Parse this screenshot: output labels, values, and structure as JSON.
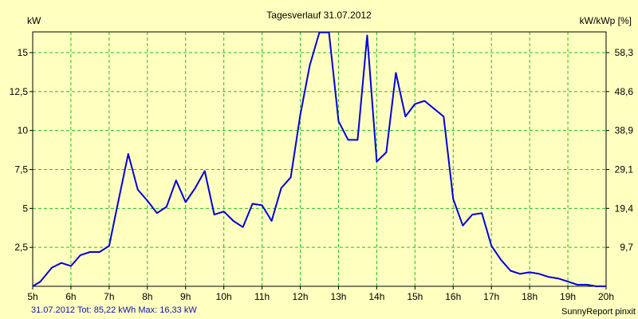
{
  "chart_data": {
    "type": "line",
    "title": "Tagesverlauf 31.07.2012",
    "ylabel_left": "kW",
    "ylabel_right": "kW/kWp [%]",
    "x_range": [
      5,
      20
    ],
    "ylim": [
      0,
      16.33
    ],
    "x_ticks": [
      {
        "value": 5,
        "label": "5h"
      },
      {
        "value": 6,
        "label": "6h"
      },
      {
        "value": 7,
        "label": "7h"
      },
      {
        "value": 8,
        "label": "8h"
      },
      {
        "value": 9,
        "label": "9h"
      },
      {
        "value": 10,
        "label": "10h"
      },
      {
        "value": 11,
        "label": "11h"
      },
      {
        "value": 12,
        "label": "12h"
      },
      {
        "value": 13,
        "label": "13h"
      },
      {
        "value": 14,
        "label": "14h"
      },
      {
        "value": 15,
        "label": "15h"
      },
      {
        "value": 16,
        "label": "16h"
      },
      {
        "value": 17,
        "label": "17h"
      },
      {
        "value": 18,
        "label": "18h"
      },
      {
        "value": 19,
        "label": "19h"
      },
      {
        "value": 20,
        "label": "20h"
      }
    ],
    "y_ticks_left": [
      {
        "value": 2.5,
        "label": "2,5"
      },
      {
        "value": 5,
        "label": "5"
      },
      {
        "value": 7.5,
        "label": "7,5"
      },
      {
        "value": 10,
        "label": "10"
      },
      {
        "value": 12.5,
        "label": "12,5"
      },
      {
        "value": 15,
        "label": "15"
      }
    ],
    "y_ticks_right": [
      {
        "value": 2.5,
        "label": "9,7"
      },
      {
        "value": 5,
        "label": "19,4"
      },
      {
        "value": 7.5,
        "label": "29,1"
      },
      {
        "value": 10,
        "label": "38,9"
      },
      {
        "value": 12.5,
        "label": "48,6"
      },
      {
        "value": 15,
        "label": "58,3"
      }
    ],
    "grid": true,
    "series": [
      {
        "color": "#0000e0",
        "x": [
          5.0,
          5.2,
          5.5,
          5.75,
          6.0,
          6.25,
          6.5,
          6.75,
          7.0,
          7.2,
          7.5,
          7.75,
          8.0,
          8.25,
          8.5,
          8.75,
          9.0,
          9.25,
          9.5,
          9.75,
          10.0,
          10.25,
          10.5,
          10.75,
          11.0,
          11.25,
          11.5,
          11.75,
          12.0,
          12.25,
          12.5,
          12.75,
          13.0,
          13.25,
          13.5,
          13.75,
          14.0,
          14.25,
          14.5,
          14.75,
          15.0,
          15.25,
          15.5,
          15.75,
          16.0,
          16.25,
          16.5,
          16.75,
          17.0,
          17.25,
          17.5,
          17.75,
          18.0,
          18.25,
          18.5,
          18.75,
          19.0,
          19.25,
          19.5,
          19.75,
          20.0
        ],
        "values": [
          0.0,
          0.3,
          1.2,
          1.5,
          1.3,
          2.0,
          2.2,
          2.2,
          2.6,
          5.0,
          8.5,
          6.2,
          5.5,
          4.7,
          5.1,
          6.8,
          5.4,
          6.3,
          7.4,
          4.6,
          4.8,
          4.2,
          3.8,
          5.3,
          5.2,
          4.2,
          6.3,
          7.0,
          11.0,
          14.2,
          16.3,
          16.3,
          10.6,
          9.4,
          9.4,
          16.1,
          8.0,
          8.6,
          13.7,
          10.9,
          11.7,
          11.9,
          11.4,
          10.9,
          5.6,
          3.9,
          4.6,
          4.7,
          2.6,
          1.7,
          1.0,
          0.8,
          0.9,
          0.8,
          0.6,
          0.5,
          0.3,
          0.1,
          0.1,
          0.0,
          0.0
        ]
      }
    ]
  },
  "footer": {
    "summary": "31.07.2012 Tot: 85,22 kWh Max: 16,33 kW",
    "brand": "SunnyReport pinxit"
  }
}
